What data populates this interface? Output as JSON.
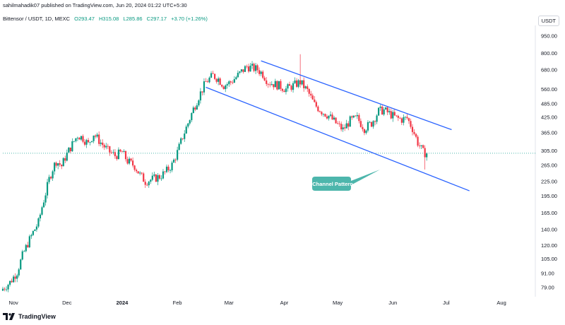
{
  "header": {
    "publish_line": "sahilmahadik07 published on TradingView.com, Jun 20, 2024 01:22 UTC+5:30",
    "symbol": "Bittensor / USDT, 1D, MEXC",
    "open": "O293.47",
    "high": "H315.08",
    "low": "L285.86",
    "close": "C297.17",
    "change": "+3.70 (+1.26%)",
    "currency": "USDT"
  },
  "footer": {
    "brand": "TradingView"
  },
  "callout": {
    "label": "Channel Pattern"
  },
  "colors": {
    "up": "#089981",
    "down": "#f23645",
    "channel": "#2962ff",
    "callout": "#4db6ac",
    "current_price_line": "#4db6ac"
  },
  "chart_data": {
    "type": "candlestick",
    "scale": "log",
    "y_tick_labels": [
      "950.00",
      "800.00",
      "680.00",
      "560.00",
      "485.00",
      "425.00",
      "365.00",
      "305.00",
      "265.00",
      "225.00",
      "195.00",
      "165.00",
      "140.00",
      "120.00",
      "105.00",
      "91.00",
      "79.00"
    ],
    "y_ticks": [
      950,
      800,
      680,
      560,
      485,
      425,
      365,
      305,
      265,
      225,
      195,
      165,
      140,
      120,
      105,
      91,
      79
    ],
    "x_tick_labels": [
      "Nov",
      "Dec",
      "2024",
      "Feb",
      "Mar",
      "Apr",
      "May",
      "Jun",
      "Jul",
      "Aug"
    ],
    "x_ticks": [
      "2023-11-01",
      "2023-12-01",
      "2024-01-01",
      "2024-02-01",
      "2024-03-01",
      "2024-04-01",
      "2024-05-01",
      "2024-06-01",
      "2024-07-01",
      "2024-08-01"
    ],
    "x_range": [
      "2023-10-26",
      "2024-08-20"
    ],
    "y_range": [
      72,
      1050
    ],
    "current_price": 297.17,
    "channel_upper": [
      {
        "date": "2024-03-19",
        "price": 740
      },
      {
        "date": "2024-07-04",
        "price": 375
      }
    ],
    "channel_lower": [
      {
        "date": "2024-02-17",
        "price": 570
      },
      {
        "date": "2024-07-14",
        "price": 205
      }
    ],
    "close_path": [
      [
        "2023-10-26",
        78
      ],
      [
        "2023-10-30",
        83
      ],
      [
        "2023-11-03",
        92
      ],
      [
        "2023-11-06",
        108
      ],
      [
        "2023-11-09",
        122
      ],
      [
        "2023-11-12",
        136
      ],
      [
        "2023-11-15",
        150
      ],
      [
        "2023-11-17",
        175
      ],
      [
        "2023-11-19",
        200
      ],
      [
        "2023-11-21",
        230
      ],
      [
        "2023-11-23",
        255
      ],
      [
        "2023-11-25",
        275
      ],
      [
        "2023-11-28",
        262
      ],
      [
        "2023-11-30",
        285
      ],
      [
        "2023-12-02",
        305
      ],
      [
        "2023-12-05",
        335
      ],
      [
        "2023-12-07",
        355
      ],
      [
        "2023-12-10",
        345
      ],
      [
        "2023-12-13",
        325
      ],
      [
        "2023-12-16",
        360
      ],
      [
        "2023-12-20",
        330
      ],
      [
        "2023-12-24",
        305
      ],
      [
        "2023-12-28",
        290
      ],
      [
        "2024-01-01",
        300
      ],
      [
        "2024-01-04",
        275
      ],
      [
        "2024-01-08",
        262
      ],
      [
        "2024-01-11",
        240
      ],
      [
        "2024-01-14",
        225
      ],
      [
        "2024-01-18",
        230
      ],
      [
        "2024-01-22",
        236
      ],
      [
        "2024-01-25",
        245
      ],
      [
        "2024-01-29",
        265
      ],
      [
        "2024-02-01",
        300
      ],
      [
        "2024-02-04",
        350
      ],
      [
        "2024-02-07",
        400
      ],
      [
        "2024-02-10",
        460
      ],
      [
        "2024-02-13",
        520
      ],
      [
        "2024-02-17",
        600
      ],
      [
        "2024-02-21",
        640
      ],
      [
        "2024-02-24",
        620
      ],
      [
        "2024-02-27",
        580
      ],
      [
        "2024-03-02",
        600
      ],
      [
        "2024-03-05",
        630
      ],
      [
        "2024-03-08",
        665
      ],
      [
        "2024-03-11",
        700
      ],
      [
        "2024-03-14",
        690
      ],
      [
        "2024-03-17",
        680
      ],
      [
        "2024-03-20",
        650
      ],
      [
        "2024-03-23",
        600
      ],
      [
        "2024-03-26",
        590
      ],
      [
        "2024-03-29",
        580
      ],
      [
        "2024-04-02",
        560
      ],
      [
        "2024-04-06",
        580
      ],
      [
        "2024-04-10",
        600
      ],
      [
        "2024-04-14",
        550
      ],
      [
        "2024-04-18",
        480
      ],
      [
        "2024-04-22",
        450
      ],
      [
        "2024-04-26",
        430
      ],
      [
        "2024-04-30",
        400
      ],
      [
        "2024-05-04",
        375
      ],
      [
        "2024-05-08",
        410
      ],
      [
        "2024-05-12",
        420
      ],
      [
        "2024-05-16",
        380
      ],
      [
        "2024-05-20",
        400
      ],
      [
        "2024-05-24",
        450
      ],
      [
        "2024-05-27",
        455
      ],
      [
        "2024-05-30",
        440
      ],
      [
        "2024-06-03",
        420
      ],
      [
        "2024-06-06",
        415
      ],
      [
        "2024-06-09",
        420
      ],
      [
        "2024-06-12",
        380
      ],
      [
        "2024-06-15",
        330
      ],
      [
        "2024-06-18",
        300
      ],
      [
        "2024-06-20",
        297.17
      ]
    ],
    "spike_highs": [
      {
        "date": "2024-04-10",
        "price": 790
      },
      {
        "date": "2024-05-25",
        "price": 480
      }
    ],
    "spike_lows": [
      {
        "date": "2024-06-19",
        "price": 253
      }
    ]
  }
}
